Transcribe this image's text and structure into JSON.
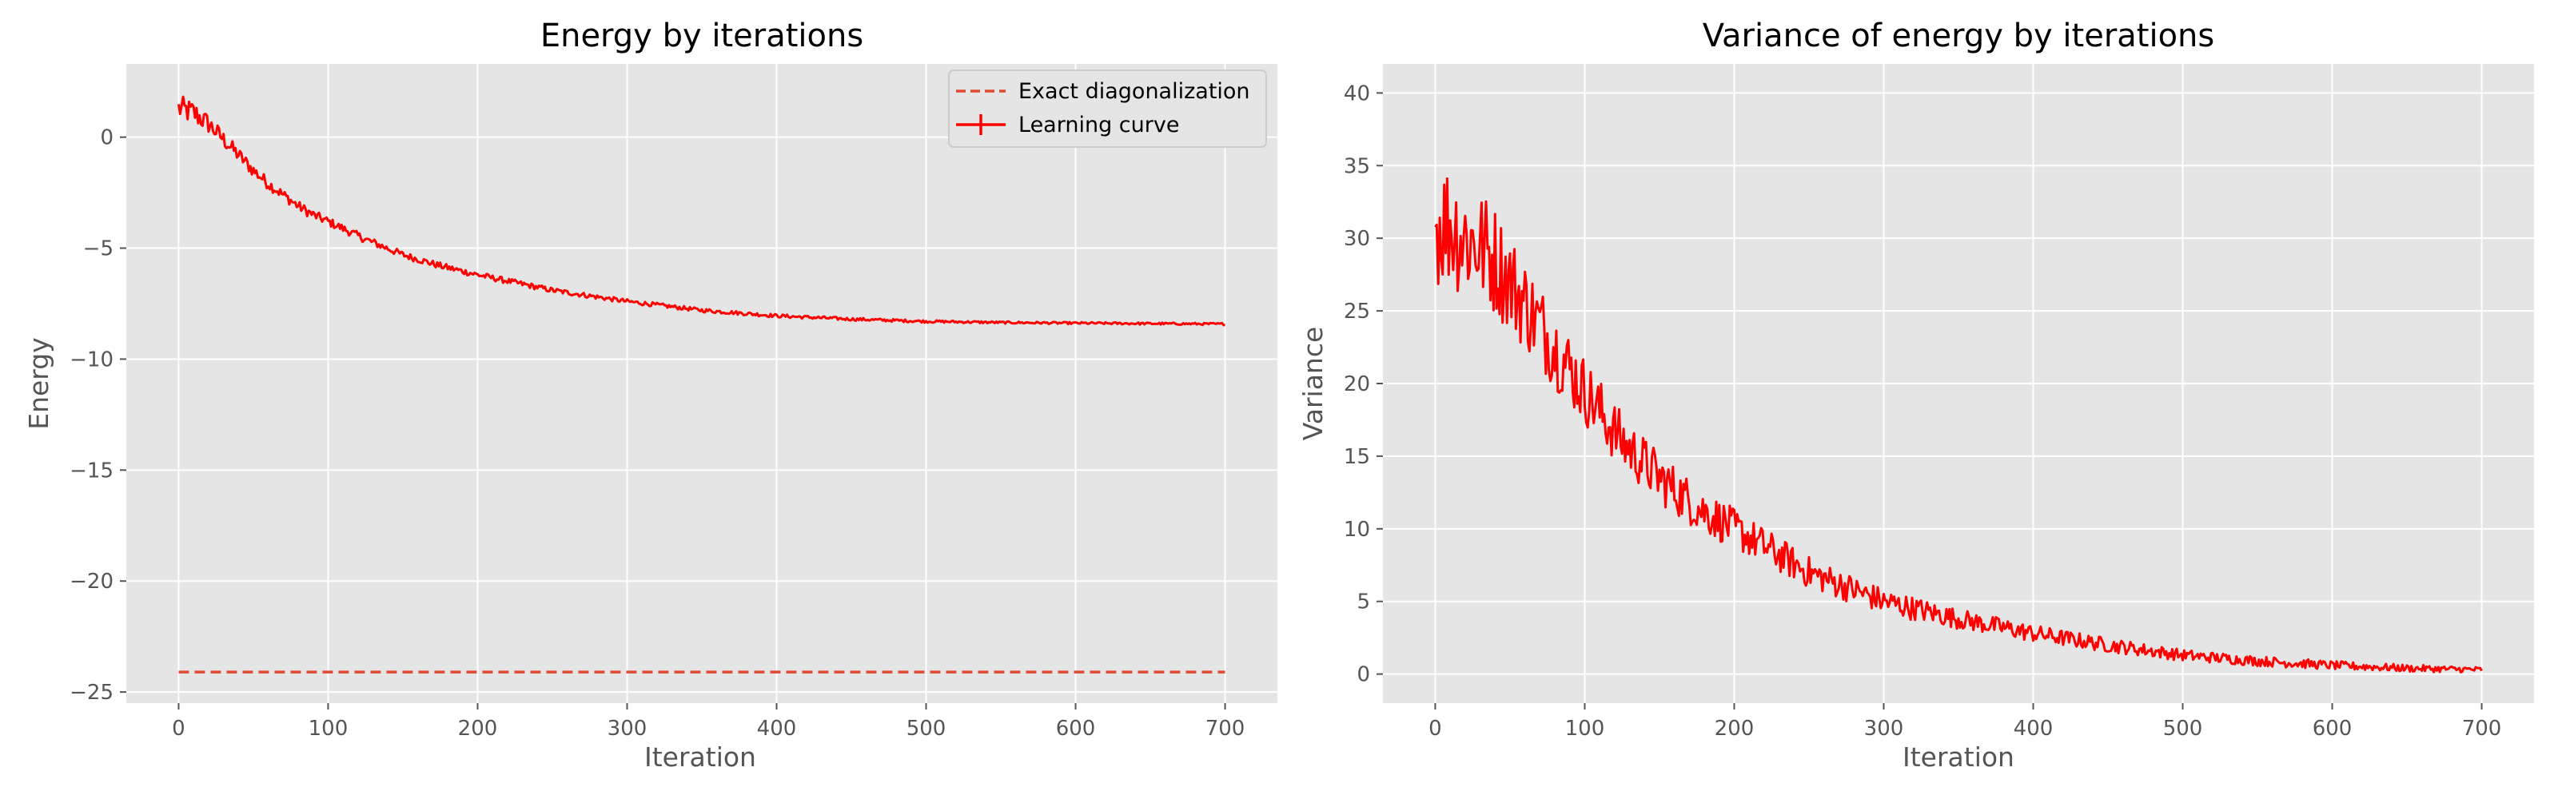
{
  "colors": {
    "axes_face": "#e5e5e5",
    "grid": "#ffffff",
    "learning_curve": "#ff0000",
    "exact": "#e24a33",
    "tick_text": "#555555",
    "title_text": "#000000"
  },
  "chart_data": [
    {
      "type": "line",
      "title": "Energy by iterations",
      "xlabel": "Iteration",
      "ylabel": "Energy",
      "xlim": [
        -35,
        735
      ],
      "ylim": [
        -25.5,
        3.3
      ],
      "xticks": [
        0,
        100,
        200,
        300,
        400,
        500,
        600,
        700
      ],
      "yticks": [
        -25,
        -20,
        -15,
        -10,
        -5,
        0
      ],
      "tick_labels_x": [
        "0",
        "100",
        "200",
        "300",
        "400",
        "500",
        "600",
        "700"
      ],
      "tick_labels_y": [
        "−25",
        "−20",
        "−15",
        "−10",
        "−5",
        "0"
      ],
      "grid": true,
      "legend_position": "top-right",
      "series": [
        {
          "name": "Exact diagonalization",
          "style": "dashed",
          "x": [
            0,
            700
          ],
          "y": [
            -24.1,
            -24.1
          ]
        },
        {
          "name": "Learning curve",
          "style": "solid-noisy",
          "x": [
            0,
            10,
            20,
            30,
            40,
            50,
            60,
            70,
            80,
            90,
            100,
            125,
            150,
            175,
            200,
            250,
            300,
            350,
            400,
            450,
            500,
            550,
            600,
            650,
            700
          ],
          "y": [
            1.3,
            1.1,
            0.6,
            -0.1,
            -0.8,
            -1.5,
            -2.1,
            -2.6,
            -3.1,
            -3.5,
            -3.8,
            -4.6,
            -5.3,
            -5.8,
            -6.2,
            -6.9,
            -7.4,
            -7.8,
            -8.05,
            -8.2,
            -8.3,
            -8.35,
            -8.38,
            -8.4,
            -8.42
          ],
          "noise": [
            0.6,
            0.55,
            0.45,
            0.38,
            0.33,
            0.3,
            0.27,
            0.25,
            0.23,
            0.22,
            0.2,
            0.18,
            0.16,
            0.15,
            0.14,
            0.12,
            0.1,
            0.09,
            0.08,
            0.07,
            0.06,
            0.05,
            0.05,
            0.05,
            0.05
          ]
        }
      ]
    },
    {
      "type": "line",
      "title": "Variance of energy by iterations",
      "xlabel": "Iteration",
      "ylabel": "Variance",
      "xlim": [
        -35,
        735
      ],
      "ylim": [
        -2,
        42
      ],
      "xticks": [
        0,
        100,
        200,
        300,
        400,
        500,
        600,
        700
      ],
      "yticks": [
        0,
        5,
        10,
        15,
        20,
        25,
        30,
        35,
        40
      ],
      "tick_labels_x": [
        "0",
        "100",
        "200",
        "300",
        "400",
        "500",
        "600",
        "700"
      ],
      "tick_labels_y": [
        "0",
        "5",
        "10",
        "15",
        "20",
        "25",
        "30",
        "35",
        "40"
      ],
      "grid": true,
      "series": [
        {
          "style": "solid-noisy",
          "x": [
            0,
            10,
            20,
            30,
            40,
            50,
            60,
            70,
            80,
            90,
            100,
            125,
            150,
            175,
            200,
            250,
            300,
            350,
            400,
            450,
            500,
            550,
            600,
            650,
            700
          ],
          "y": [
            31,
            31,
            30,
            29.5,
            28.5,
            27,
            25.5,
            24,
            22.5,
            21,
            19.5,
            16,
            13.5,
            11.5,
            10,
            7,
            5,
            3.8,
            2.8,
            2,
            1.3,
            0.9,
            0.6,
            0.4,
            0.3
          ],
          "noise": [
            4.5,
            4.5,
            4.2,
            4,
            3.8,
            3.5,
            3.2,
            3,
            2.8,
            2.6,
            2.4,
            2,
            1.8,
            1.6,
            1.4,
            1.1,
            0.9,
            0.7,
            0.6,
            0.5,
            0.4,
            0.35,
            0.3,
            0.25,
            0.2
          ]
        }
      ]
    }
  ]
}
